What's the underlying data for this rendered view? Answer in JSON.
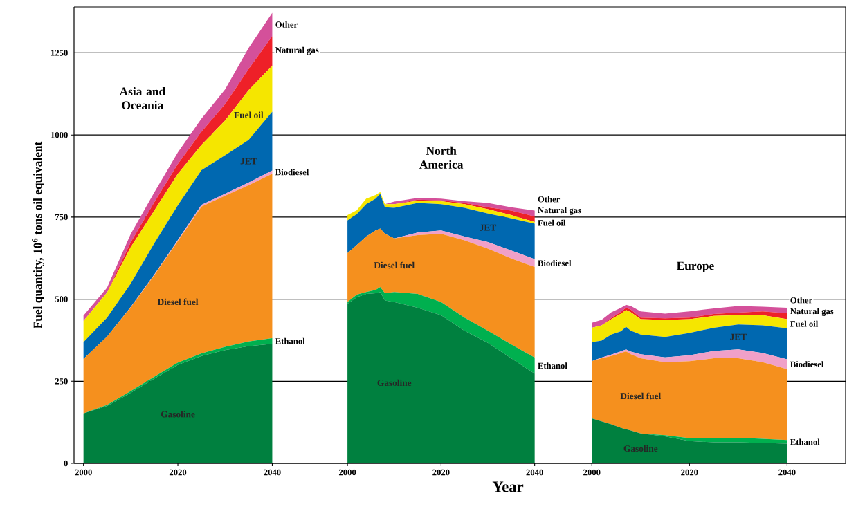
{
  "chart_data": [
    {
      "type": "area",
      "stacked": true,
      "title": "Asia and Oceania",
      "ylabel": "Fuel quantity, 10$^{6}$ tons oil equivalent",
      "x": [
        2000,
        2005,
        2010,
        2015,
        2020,
        2025,
        2030,
        2035,
        2040
      ],
      "xlim": [
        1998,
        2048
      ],
      "ylim": [
        0,
        1390
      ],
      "xticks": [
        2000,
        2020,
        2040
      ],
      "yticks": [
        0,
        250,
        500,
        750,
        1000,
        1250
      ],
      "grid": "y",
      "series": [
        {
          "name": "Gasoline",
          "color": "#00803f",
          "values": [
            152,
            175,
            215,
            258,
            300,
            327,
            345,
            357,
            364
          ]
        },
        {
          "name": "Ethanol",
          "color": "#00b04f",
          "values": [
            0,
            3,
            5,
            6,
            7,
            8,
            10,
            14,
            17
          ]
        },
        {
          "name": "Diesel fuel",
          "color": "#f5901e",
          "values": [
            166,
            208,
            255,
            309,
            370,
            447,
            460,
            476,
            501
          ]
        },
        {
          "name": "Biodiesel",
          "color": "#f0a0c8",
          "values": [
            0,
            0,
            1,
            2,
            3,
            5,
            6,
            8,
            10
          ]
        },
        {
          "name": "JET",
          "color": "#0068b0",
          "values": [
            51,
            58,
            71,
            95,
            106,
            106,
            117,
            130,
            179
          ]
        },
        {
          "name": "Fuel oil",
          "color": "#f5e600",
          "values": [
            65,
            76,
            111,
            100,
            96,
            77,
            106,
            152,
            140
          ]
        },
        {
          "name": "Natural gas",
          "color": "#ee2028",
          "values": [
            0,
            0,
            15,
            25,
            30,
            40,
            50,
            64,
            90
          ]
        },
        {
          "name": "Other",
          "color": "#d4509a",
          "values": [
            16,
            15,
            25,
            30,
            35,
            40,
            45,
            64,
            71
          ]
        }
      ]
    },
    {
      "type": "area",
      "stacked": true,
      "title": "North America",
      "xlabel": "Year",
      "tick_labels": "x",
      "x": [
        2000,
        2002,
        2004,
        2006,
        2007,
        2008,
        2010,
        2015,
        2020,
        2025,
        2030,
        2035,
        2040
      ],
      "xlim": [
        1992,
        2047
      ],
      "ylim": [
        0,
        1390
      ],
      "xticks": [
        2000,
        2020,
        2040
      ],
      "yticks": [
        0,
        250,
        500,
        750,
        1000,
        1250
      ],
      "grid": "y",
      "series": [
        {
          "name": "Gasoline",
          "color": "#00803f",
          "values": [
            486,
            506,
            516,
            518,
            522,
            496,
            491,
            474,
            451,
            404,
            367,
            320,
            273
          ]
        },
        {
          "name": "Ethanol",
          "color": "#00b04f",
          "values": [
            5,
            8,
            6,
            10,
            15,
            22,
            31,
            42,
            40,
            40,
            37,
            42,
            49
          ]
        },
        {
          "name": "Diesel fuel",
          "color": "#f5901e",
          "values": [
            149,
            151,
            169,
            181,
            178,
            181,
            163,
            179,
            208,
            235,
            250,
            262,
            276
          ]
        },
        {
          "name": "Biodiesel",
          "color": "#f0a0c8",
          "values": [
            0,
            0,
            0,
            0,
            0,
            0,
            0,
            8,
            10,
            12,
            20,
            24,
            24
          ]
        },
        {
          "name": "JET",
          "color": "#0068b0",
          "values": [
            100,
            94,
            98,
            97,
            106,
            81,
            93,
            90,
            80,
            87,
            87,
            98,
            108
          ]
        },
        {
          "name": "Fuel oil",
          "color": "#f5e600",
          "values": [
            16,
            12,
            17,
            11,
            5,
            9,
            11,
            7,
            9,
            11,
            13,
            10,
            5
          ]
        },
        {
          "name": "Natural gas",
          "color": "#ee2028",
          "values": [
            0,
            0,
            0,
            0,
            0,
            0,
            0,
            3,
            3,
            4,
            6,
            14,
            17
          ]
        },
        {
          "name": "Other",
          "color": "#d4509a",
          "values": [
            0,
            0,
            0,
            0,
            0,
            0,
            8,
            5,
            5,
            5,
            13,
            10,
            18
          ]
        }
      ]
    },
    {
      "type": "area",
      "stacked": true,
      "title": "Europe",
      "tick_labels": "x",
      "x": [
        2000,
        2002,
        2004,
        2006,
        2007,
        2008,
        2010,
        2015,
        2020,
        2025,
        2030,
        2035,
        2040
      ],
      "xlim": [
        1995,
        2052
      ],
      "ylim": [
        0,
        1390
      ],
      "xticks": [
        2000,
        2020,
        2040
      ],
      "yticks": [
        0,
        250,
        500,
        750,
        1000,
        1250
      ],
      "grid": "y",
      "series": [
        {
          "name": "Gasoline",
          "color": "#00803f",
          "values": [
            137,
            128,
            119,
            108,
            104,
            100,
            91,
            82,
            68,
            64,
            64,
            62,
            60
          ]
        },
        {
          "name": "Ethanol",
          "color": "#00b04f",
          "values": [
            0,
            0,
            0,
            0,
            0,
            0,
            0,
            4,
            9,
            13,
            14,
            13,
            11
          ]
        },
        {
          "name": "Diesel fuel",
          "color": "#f5901e",
          "values": [
            174,
            192,
            208,
            228,
            237,
            232,
            229,
            222,
            234,
            243,
            242,
            233,
            216
          ]
        },
        {
          "name": "Biodiesel",
          "color": "#f0a0c8",
          "values": [
            0,
            2,
            4,
            5,
            6,
            8,
            12,
            15,
            18,
            22,
            27,
            28,
            30
          ]
        },
        {
          "name": "JET",
          "color": "#0068b0",
          "values": [
            58,
            52,
            61,
            61,
            69,
            64,
            60,
            62,
            68,
            71,
            76,
            84,
            94
          ]
        },
        {
          "name": "Fuel oil",
          "color": "#f5e600",
          "values": [
            44,
            46,
            47,
            54,
            51,
            56,
            47,
            52,
            42,
            36,
            28,
            31,
            28
          ]
        },
        {
          "name": "Natural gas",
          "color": "#ee2028",
          "values": [
            0,
            0,
            4,
            6,
            7,
            8,
            5,
            5,
            5,
            6,
            8,
            12,
            18
          ]
        },
        {
          "name": "Other",
          "color": "#d4509a",
          "values": [
            15,
            17,
            17,
            12,
            9,
            11,
            19,
            14,
            19,
            17,
            20,
            14,
            17
          ]
        }
      ]
    }
  ]
}
